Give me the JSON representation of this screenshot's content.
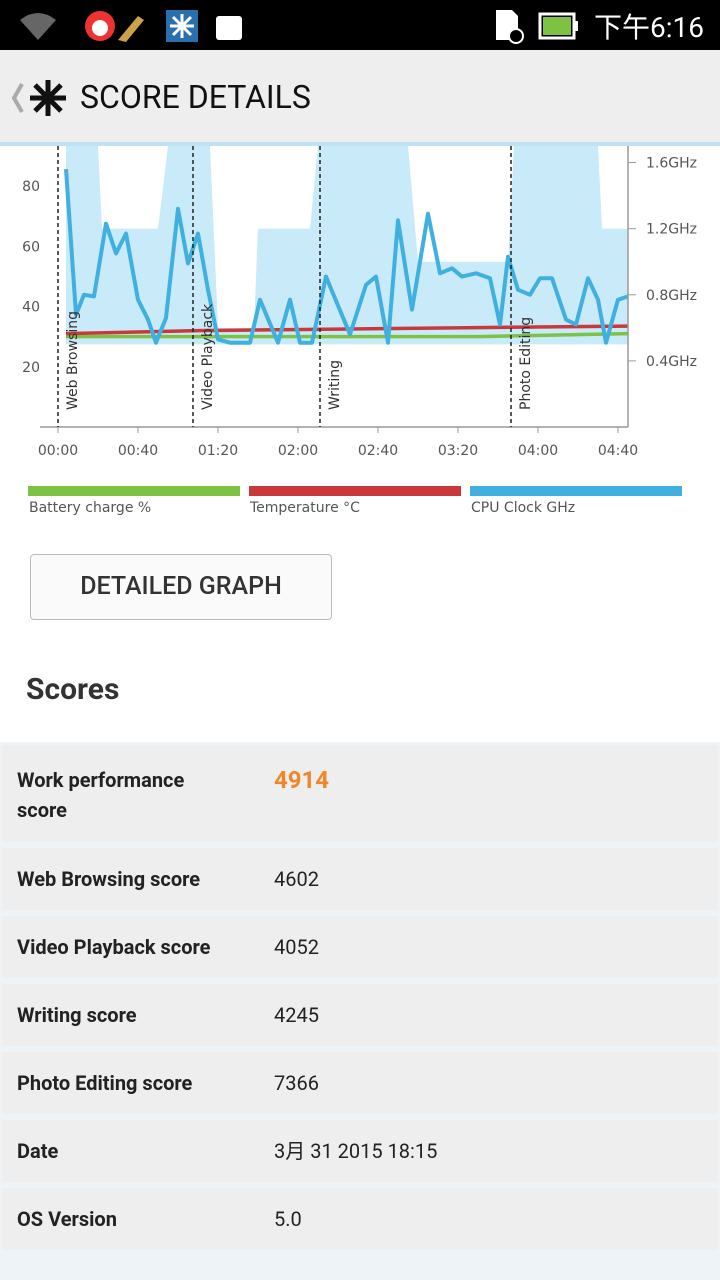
{
  "status_bar": {
    "time": "下午6:16"
  },
  "app_bar": {
    "title": "SCORE DETAILS"
  },
  "chart_data": {
    "type": "line",
    "xlim": [
      -9,
      285
    ],
    "xticks": [
      {
        "value": 0,
        "label": "00:00"
      },
      {
        "value": 40,
        "label": "00:40"
      },
      {
        "value": 80,
        "label": "01:20"
      },
      {
        "value": 120,
        "label": "02:00"
      },
      {
        "value": 160,
        "label": "02:40"
      },
      {
        "value": 200,
        "label": "03:20"
      },
      {
        "value": 240,
        "label": "04:00"
      },
      {
        "value": 280,
        "label": "04:40"
      }
    ],
    "ylim": [
      0,
      93.3
    ],
    "yticks": [
      20,
      40,
      60,
      80
    ],
    "y2lim": [
      0,
      1.7
    ],
    "y2ticks": [
      {
        "value": 0.4,
        "label": "0.4GHz"
      },
      {
        "value": 0.8,
        "label": "0.8GHz"
      },
      {
        "value": 1.2,
        "label": "1.2GHz"
      },
      {
        "value": 1.6,
        "label": "1.6GHz"
      }
    ],
    "annotations": [
      {
        "label": "Web Browsing",
        "x": 0
      },
      {
        "label": "Video Playback",
        "x": 67.5
      },
      {
        "label": "Writing",
        "x": 131
      },
      {
        "label": "Photo Editing",
        "x": 226.5
      }
    ],
    "cpu_range": {
      "color": "#c8eaf9",
      "axis": "y2",
      "x": [
        4,
        20,
        22,
        50,
        55,
        76,
        80,
        98,
        100,
        126,
        130,
        175,
        180,
        225,
        228,
        270,
        272,
        285
      ],
      "values": [
        1.7,
        1.7,
        1.2,
        1.2,
        1.7,
        1.7,
        0.6,
        0.6,
        1.2,
        1.2,
        1.7,
        1.7,
        1.0,
        1.0,
        1.7,
        1.7,
        1.2,
        1.2
      ],
      "low": [
        0.5,
        0.5,
        0.5,
        0.5,
        0.5,
        0.5,
        0.5,
        0.5,
        0.5,
        0.5,
        0.5,
        0.5,
        0.5,
        0.5,
        0.5,
        0.5,
        0.5,
        0.5
      ]
    },
    "series": [
      {
        "name": "Battery charge %",
        "color": "#7dc242",
        "x": [
          4,
          70,
          140,
          210,
          285
        ],
        "values": [
          30,
          30,
          30,
          30,
          31
        ]
      },
      {
        "name": "Temperature °C",
        "color": "#c9393b",
        "x": [
          4,
          70,
          140,
          210,
          285
        ],
        "values": [
          31,
          32,
          32.5,
          33,
          33.5
        ]
      },
      {
        "name": "CPU Clock GHz",
        "color": "#3fb0e0",
        "axis": "y2",
        "x": [
          4,
          9,
          13,
          18,
          24,
          29,
          34,
          40,
          45,
          49,
          54,
          60,
          65,
          70,
          75,
          80,
          86,
          96,
          101,
          110,
          116,
          121,
          127,
          134,
          146,
          154,
          159,
          165,
          170,
          177,
          185,
          191,
          197,
          202,
          209,
          216,
          221,
          225,
          230,
          236,
          241,
          247,
          254,
          259,
          265,
          270,
          274,
          280,
          285
        ],
        "values": [
          1.56,
          0.68,
          0.8,
          0.79,
          1.23,
          1.05,
          1.17,
          0.77,
          0.65,
          0.51,
          0.66,
          1.32,
          0.99,
          1.17,
          0.83,
          0.53,
          0.51,
          0.51,
          0.77,
          0.51,
          0.77,
          0.51,
          0.51,
          0.91,
          0.56,
          0.86,
          0.91,
          0.51,
          1.25,
          0.71,
          1.29,
          0.93,
          0.96,
          0.91,
          0.93,
          0.9,
          0.62,
          1.03,
          0.83,
          0.8,
          0.9,
          0.9,
          0.65,
          0.62,
          0.9,
          0.77,
          0.51,
          0.77,
          0.79
        ]
      }
    ]
  },
  "button": {
    "label": "DETAILED GRAPH"
  },
  "scores": {
    "heading": "Scores",
    "rows": [
      [
        "Work performance score",
        "4914"
      ],
      [
        "Web Browsing score",
        "4602"
      ],
      [
        "Video Playback score",
        "4052"
      ],
      [
        "Writing score",
        "4245"
      ],
      [
        "Photo Editing score",
        "7366"
      ],
      [
        "Date",
        "3月 31 2015 18:15"
      ],
      [
        "OS Version",
        "5.0"
      ]
    ]
  }
}
